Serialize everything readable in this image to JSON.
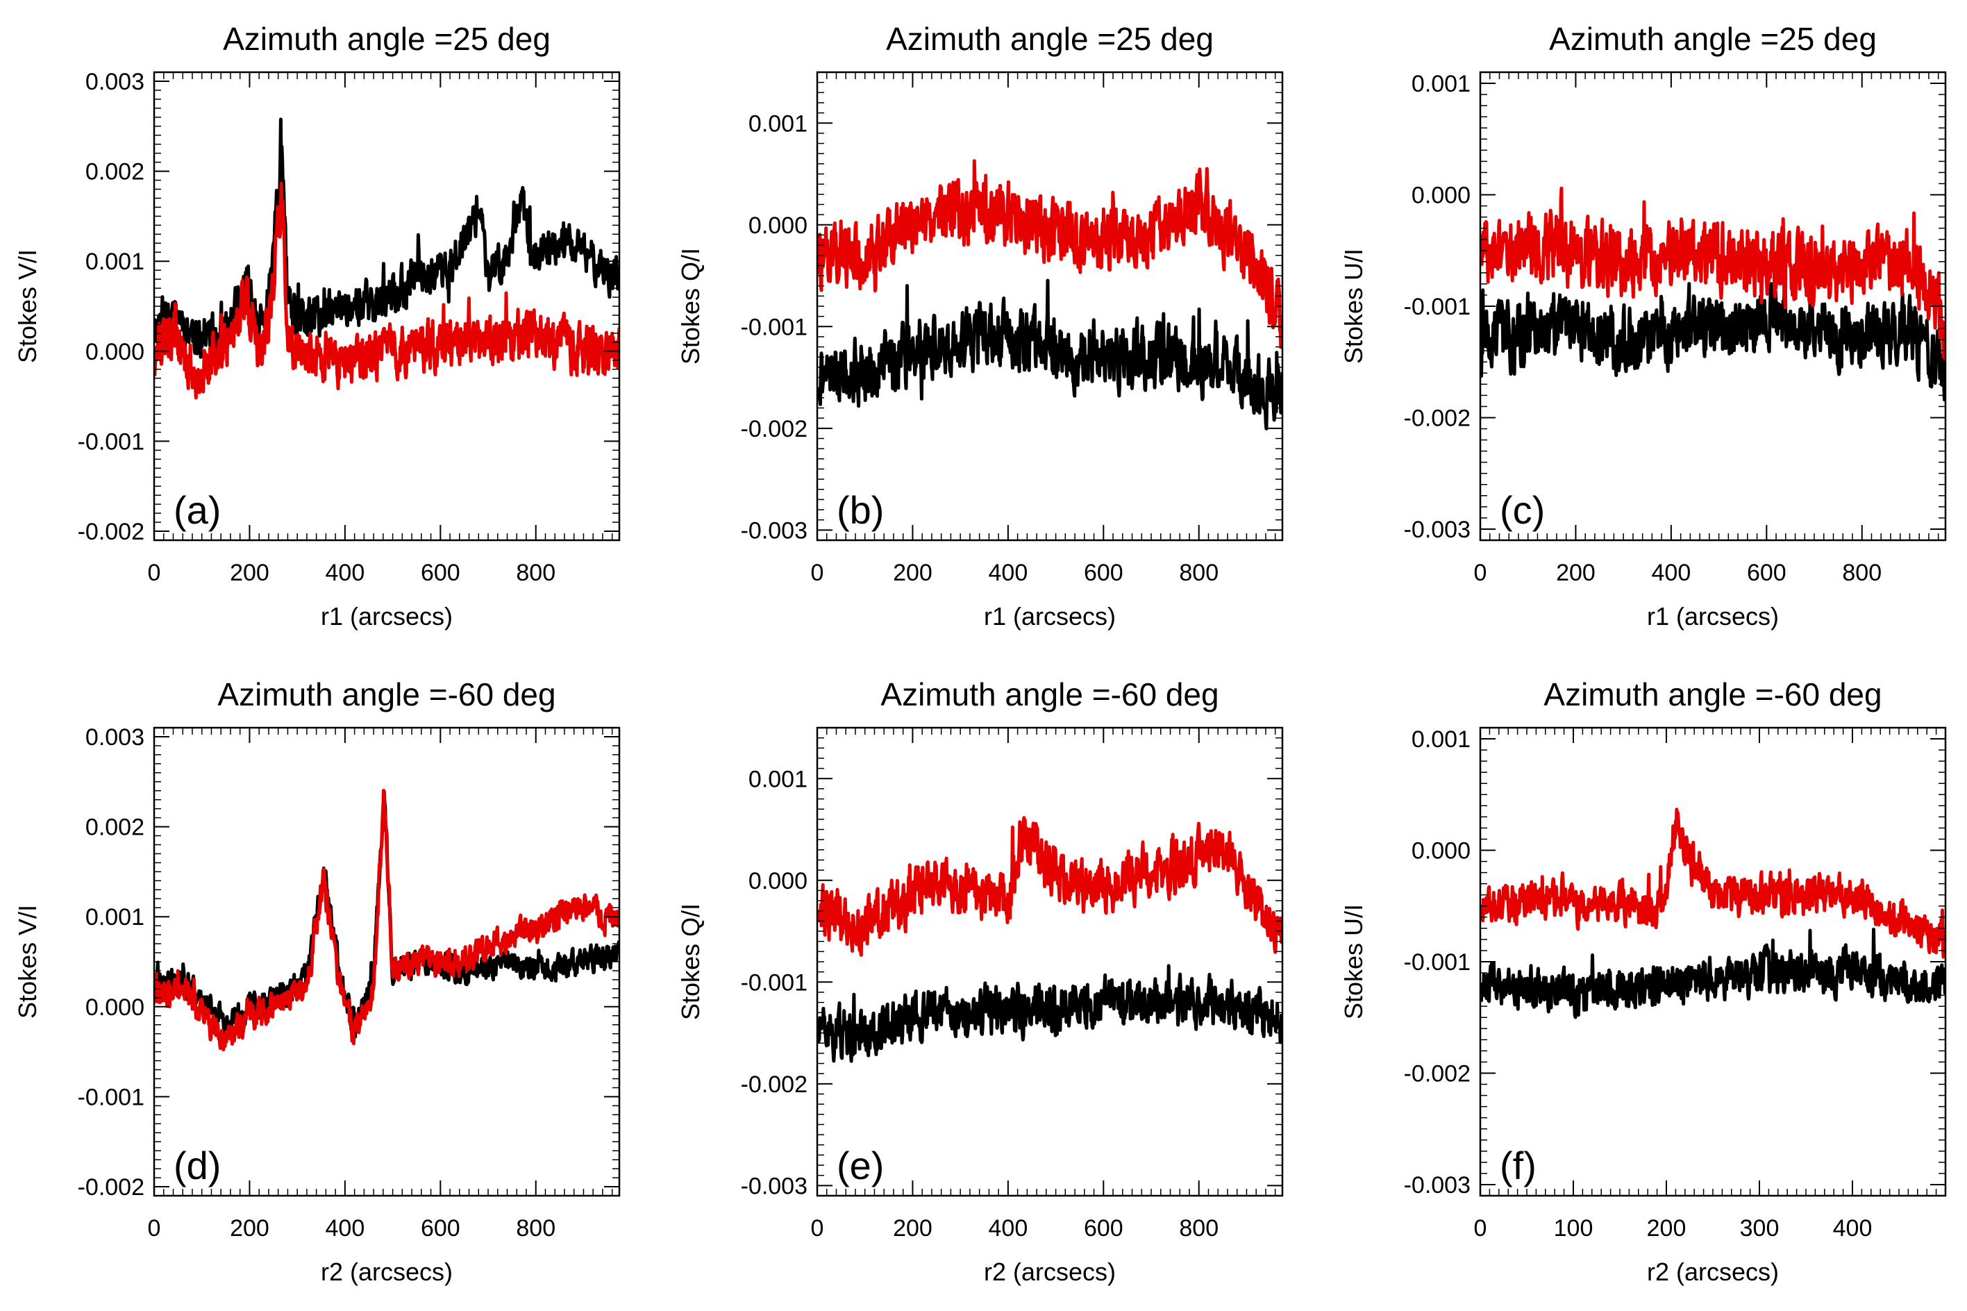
{
  "figure": {
    "series_colors": {
      "black": "#000000",
      "red": "#e60000"
    },
    "series_names": [
      "black",
      "red"
    ]
  },
  "chart_data": [
    {
      "id": "a",
      "panel_label": "(a)",
      "type": "line",
      "title": "Azimuth angle =25 deg",
      "xlabel": "r1 (arcsecs)",
      "ylabel": "Stokes V/I",
      "xlim": [
        0,
        975
      ],
      "ylim": [
        -0.0021,
        0.0031
      ],
      "xticks": [
        0,
        200,
        400,
        600,
        800
      ],
      "xtick_labels": [
        "0",
        "200",
        "400",
        "600",
        "800"
      ],
      "yticks": [
        -0.002,
        -0.001,
        0.0,
        0.001,
        0.002,
        0.003
      ],
      "ytick_labels": [
        "-0.002",
        "-0.001",
        "0.000",
        "0.001",
        "0.002",
        "0.003"
      ],
      "series": [
        {
          "name": "black",
          "color": "#000000",
          "noise_seed": 11,
          "noise_amp": 0.00034,
          "x": [
            0,
            40,
            80,
            150,
            195,
            215,
            240,
            268,
            280,
            300,
            400,
            500,
            560,
            620,
            680,
            700,
            740,
            770,
            790,
            850,
            900,
            975
          ],
          "values": [
            0.0003,
            0.0005,
            0.0002,
            0.0002,
            0.0008,
            0.0003,
            0.0006,
            0.0022,
            0.0005,
            0.0003,
            0.0005,
            0.0006,
            0.0009,
            0.0009,
            0.0016,
            0.0008,
            0.0011,
            0.0018,
            0.001,
            0.0012,
            0.0011,
            0.0008
          ]
        },
        {
          "name": "red",
          "color": "#e60000",
          "noise_seed": 12,
          "noise_amp": 0.00042,
          "x": [
            0,
            40,
            80,
            150,
            195,
            215,
            240,
            268,
            280,
            300,
            400,
            500,
            600,
            700,
            800,
            900,
            975
          ],
          "values": [
            0.0,
            0.0002,
            -0.0002,
            0.0,
            0.0006,
            0.0,
            0.0002,
            0.0018,
            0.0002,
            0.0,
            -0.0001,
            0.0,
            0.0001,
            0.0001,
            0.0002,
            0.0,
            0.0
          ]
        }
      ]
    },
    {
      "id": "b",
      "panel_label": "(b)",
      "type": "line",
      "title": "Azimuth angle =25 deg",
      "xlabel": "r1 (arcsecs)",
      "ylabel": "Stokes Q/I",
      "xlim": [
        0,
        975
      ],
      "ylim": [
        -0.0031,
        0.0015
      ],
      "xticks": [
        0,
        200,
        400,
        600,
        800
      ],
      "xtick_labels": [
        "0",
        "200",
        "400",
        "600",
        "800"
      ],
      "yticks": [
        -0.003,
        -0.002,
        -0.001,
        0.0,
        0.001
      ],
      "ytick_labels": [
        "-0.003",
        "-0.002",
        "-0.001",
        "0.000",
        "0.001"
      ],
      "series": [
        {
          "name": "black",
          "color": "#000000",
          "noise_seed": 21,
          "noise_amp": 0.00046,
          "x": [
            0,
            100,
            250,
            400,
            550,
            700,
            850,
            975
          ],
          "values": [
            -0.0015,
            -0.0014,
            -0.0012,
            -0.0011,
            -0.0013,
            -0.0013,
            -0.0014,
            -0.0017
          ]
        },
        {
          "name": "red",
          "color": "#e60000",
          "noise_seed": 22,
          "noise_amp": 0.00046,
          "x": [
            0,
            100,
            250,
            400,
            550,
            700,
            800,
            900,
            975
          ],
          "values": [
            -0.0003,
            -0.0003,
            0.0001,
            0.0001,
            -0.0001,
            -0.0001,
            0.0002,
            -0.0003,
            -0.001
          ]
        }
      ]
    },
    {
      "id": "c",
      "panel_label": "(c)",
      "type": "line",
      "title": "Azimuth angle =25 deg",
      "xlabel": "r1 (arcsecs)",
      "ylabel": "Stokes U/I",
      "xlim": [
        0,
        975
      ],
      "ylim": [
        -0.0031,
        0.0011
      ],
      "xticks": [
        0,
        200,
        400,
        600,
        800
      ],
      "xtick_labels": [
        "0",
        "200",
        "400",
        "600",
        "800"
      ],
      "yticks": [
        -0.003,
        -0.002,
        -0.001,
        0.0,
        0.001
      ],
      "ytick_labels": [
        "-0.003",
        "-0.002",
        "-0.001",
        "0.000",
        "0.001"
      ],
      "series": [
        {
          "name": "black",
          "color": "#000000",
          "noise_seed": 31,
          "noise_amp": 0.00042,
          "x": [
            0,
            150,
            300,
            450,
            600,
            750,
            900,
            975
          ],
          "values": [
            -0.0013,
            -0.0012,
            -0.0013,
            -0.0012,
            -0.0011,
            -0.0013,
            -0.0012,
            -0.0016
          ]
        },
        {
          "name": "red",
          "color": "#e60000",
          "noise_seed": 32,
          "noise_amp": 0.00046,
          "x": [
            0,
            150,
            300,
            450,
            600,
            750,
            900,
            975
          ],
          "values": [
            -0.0005,
            -0.0005,
            -0.0006,
            -0.0005,
            -0.0006,
            -0.0007,
            -0.0006,
            -0.0012
          ]
        }
      ]
    },
    {
      "id": "d",
      "panel_label": "(d)",
      "type": "line",
      "title": "Azimuth angle =-60 deg",
      "xlabel": "r2 (arcsecs)",
      "ylabel": "Stokes V/I",
      "xlim": [
        0,
        975
      ],
      "ylim": [
        -0.0021,
        0.0031
      ],
      "xticks": [
        0,
        200,
        400,
        600,
        800
      ],
      "xtick_labels": [
        "0",
        "200",
        "400",
        "600",
        "800"
      ],
      "yticks": [
        -0.002,
        -0.001,
        0.0,
        0.001,
        0.002,
        0.003
      ],
      "ytick_labels": [
        "-0.002",
        "-0.001",
        "0.000",
        "0.001",
        "0.002",
        "0.003"
      ],
      "series": [
        {
          "name": "black",
          "color": "#000000",
          "noise_seed": 41,
          "noise_amp": 0.00022,
          "x": [
            0,
            60,
            150,
            200,
            260,
            320,
            355,
            390,
            420,
            460,
            482,
            500,
            560,
            650,
            750,
            800,
            900,
            975
          ],
          "values": [
            0.0002,
            0.0003,
            -0.0002,
            0.0,
            0.0001,
            0.0003,
            0.0015,
            0.0003,
            -0.0002,
            0.0003,
            0.0024,
            0.0004,
            0.0005,
            0.0004,
            0.0005,
            0.0004,
            0.0005,
            0.0006
          ]
        },
        {
          "name": "red",
          "color": "#e60000",
          "noise_seed": 42,
          "noise_amp": 0.00024,
          "x": [
            0,
            60,
            150,
            200,
            260,
            320,
            355,
            390,
            420,
            460,
            482,
            500,
            560,
            650,
            750,
            800,
            900,
            975
          ],
          "values": [
            0.0001,
            0.0002,
            -0.0004,
            -0.0001,
            0.0,
            0.0002,
            0.0014,
            0.0002,
            -0.0003,
            0.0002,
            0.0024,
            0.0004,
            0.0005,
            0.0005,
            0.0008,
            0.0009,
            0.0011,
            0.001
          ]
        }
      ]
    },
    {
      "id": "e",
      "panel_label": "(e)",
      "type": "line",
      "title": "Azimuth angle =-60 deg",
      "xlabel": "r2 (arcsecs)",
      "ylabel": "Stokes Q/I",
      "xlim": [
        0,
        975
      ],
      "ylim": [
        -0.0031,
        0.0015
      ],
      "xticks": [
        0,
        200,
        400,
        600,
        800
      ],
      "xtick_labels": [
        "0",
        "200",
        "400",
        "600",
        "800"
      ],
      "yticks": [
        -0.003,
        -0.002,
        -0.001,
        0.0,
        0.001
      ],
      "ytick_labels": [
        "-0.003",
        "-0.002",
        "-0.001",
        "0.000",
        "0.001"
      ],
      "series": [
        {
          "name": "black",
          "color": "#000000",
          "noise_seed": 51,
          "noise_amp": 0.00036,
          "x": [
            0,
            100,
            250,
            400,
            550,
            700,
            850,
            975
          ],
          "values": [
            -0.0015,
            -0.0015,
            -0.0013,
            -0.0013,
            -0.0012,
            -0.0012,
            -0.0012,
            -0.0014
          ]
        },
        {
          "name": "red",
          "color": "#e60000",
          "noise_seed": 52,
          "noise_amp": 0.00038,
          "x": [
            0,
            100,
            250,
            400,
            430,
            550,
            700,
            850,
            975
          ],
          "values": [
            -0.0003,
            -0.0004,
            0.0,
            -0.0002,
            0.0004,
            -0.0001,
            0.0001,
            0.0003,
            -0.0006
          ]
        }
      ]
    },
    {
      "id": "f",
      "panel_label": "(f)",
      "type": "line",
      "title": "Azimuth angle =-60 deg",
      "xlabel": "r2 (arcsecs)",
      "ylabel": "Stokes U/I",
      "xlim": [
        0,
        500
      ],
      "ylim": [
        -0.0031,
        0.0011
      ],
      "xticks": [
        0,
        100,
        200,
        300,
        400
      ],
      "xtick_labels": [
        "0",
        "100",
        "200",
        "300",
        "400"
      ],
      "yticks": [
        -0.003,
        -0.002,
        -0.001,
        0.0,
        0.001
      ],
      "ytick_labels": [
        "-0.003",
        "-0.002",
        "-0.001",
        "0.000",
        "0.001"
      ],
      "series": [
        {
          "name": "black",
          "color": "#000000",
          "noise_seed": 61,
          "noise_amp": 0.00028,
          "x": [
            0,
            100,
            200,
            300,
            400,
            500
          ],
          "values": [
            -0.0012,
            -0.0013,
            -0.0012,
            -0.0011,
            -0.0011,
            -0.0012
          ]
        },
        {
          "name": "red",
          "color": "#e60000",
          "noise_seed": 62,
          "noise_amp": 0.00026,
          "x": [
            0,
            90,
            100,
            200,
            207,
            250,
            300,
            400,
            500
          ],
          "values": [
            -0.0005,
            -0.0004,
            -0.0005,
            -0.0005,
            0.0002,
            -0.0004,
            -0.0004,
            -0.0004,
            -0.0008
          ]
        }
      ]
    }
  ]
}
